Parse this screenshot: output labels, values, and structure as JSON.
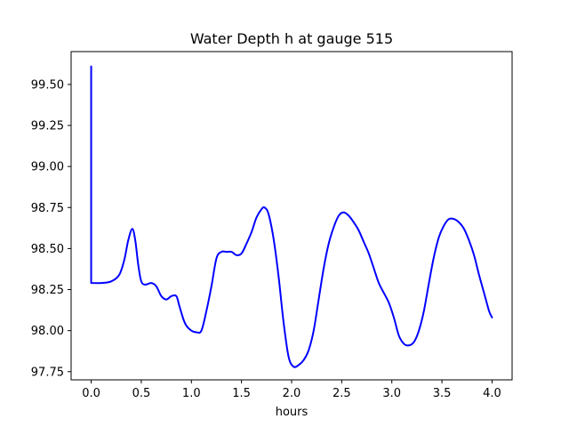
{
  "chart_data": {
    "type": "line",
    "title": "Water Depth h at gauge 515",
    "xlabel": "hours",
    "ylabel": "",
    "xlim": [
      -0.2,
      4.2
    ],
    "ylim": [
      97.7,
      99.7
    ],
    "xticks": [
      0.0,
      0.5,
      1.0,
      1.5,
      2.0,
      2.5,
      3.0,
      3.5,
      4.0
    ],
    "xtick_labels": [
      "0.0",
      "0.5",
      "1.0",
      "1.5",
      "2.0",
      "2.5",
      "3.0",
      "3.5",
      "4.0"
    ],
    "yticks": [
      97.75,
      98.0,
      98.25,
      98.5,
      98.75,
      99.0,
      99.25,
      99.5
    ],
    "ytick_labels": [
      "97.75",
      "98.00",
      "98.25",
      "98.50",
      "98.75",
      "99.00",
      "99.25",
      "99.50"
    ],
    "grid": false,
    "series": [
      {
        "color": "#0000ff",
        "x": [
          0.0,
          0.0,
          0.1,
          0.2,
          0.28,
          0.33,
          0.37,
          0.41,
          0.44,
          0.47,
          0.5,
          0.54,
          0.6,
          0.65,
          0.7,
          0.75,
          0.8,
          0.85,
          0.88,
          0.92,
          0.95,
          1.0,
          1.05,
          1.1,
          1.15,
          1.2,
          1.25,
          1.3,
          1.35,
          1.4,
          1.45,
          1.5,
          1.55,
          1.6,
          1.65,
          1.7,
          1.73,
          1.77,
          1.82,
          1.87,
          1.92,
          1.97,
          2.02,
          2.07,
          2.12,
          2.17,
          2.22,
          2.27,
          2.32,
          2.37,
          2.42,
          2.47,
          2.52,
          2.57,
          2.62,
          2.67,
          2.72,
          2.77,
          2.82,
          2.87,
          2.92,
          2.97,
          3.02,
          3.07,
          3.12,
          3.17,
          3.22,
          3.27,
          3.32,
          3.37,
          3.42,
          3.47,
          3.52,
          3.57,
          3.62,
          3.67,
          3.72,
          3.77,
          3.82,
          3.87,
          3.92,
          3.97,
          4.0
        ],
        "y": [
          99.61,
          98.29,
          98.29,
          98.3,
          98.34,
          98.43,
          98.55,
          98.62,
          98.55,
          98.4,
          98.3,
          98.28,
          98.29,
          98.27,
          98.21,
          98.19,
          98.21,
          98.21,
          98.15,
          98.07,
          98.03,
          98.0,
          97.99,
          98.0,
          98.12,
          98.27,
          98.44,
          98.48,
          98.48,
          98.48,
          98.46,
          98.47,
          98.53,
          98.6,
          98.69,
          98.74,
          98.75,
          98.71,
          98.56,
          98.33,
          98.05,
          97.84,
          97.78,
          97.79,
          97.82,
          97.88,
          98.0,
          98.19,
          98.38,
          98.53,
          98.63,
          98.7,
          98.72,
          98.7,
          98.66,
          98.61,
          98.54,
          98.47,
          98.38,
          98.29,
          98.23,
          98.17,
          98.08,
          97.97,
          97.92,
          97.91,
          97.93,
          98.0,
          98.12,
          98.29,
          98.45,
          98.57,
          98.64,
          98.68,
          98.68,
          98.66,
          98.62,
          98.55,
          98.46,
          98.34,
          98.23,
          98.12,
          98.08
        ]
      }
    ]
  }
}
